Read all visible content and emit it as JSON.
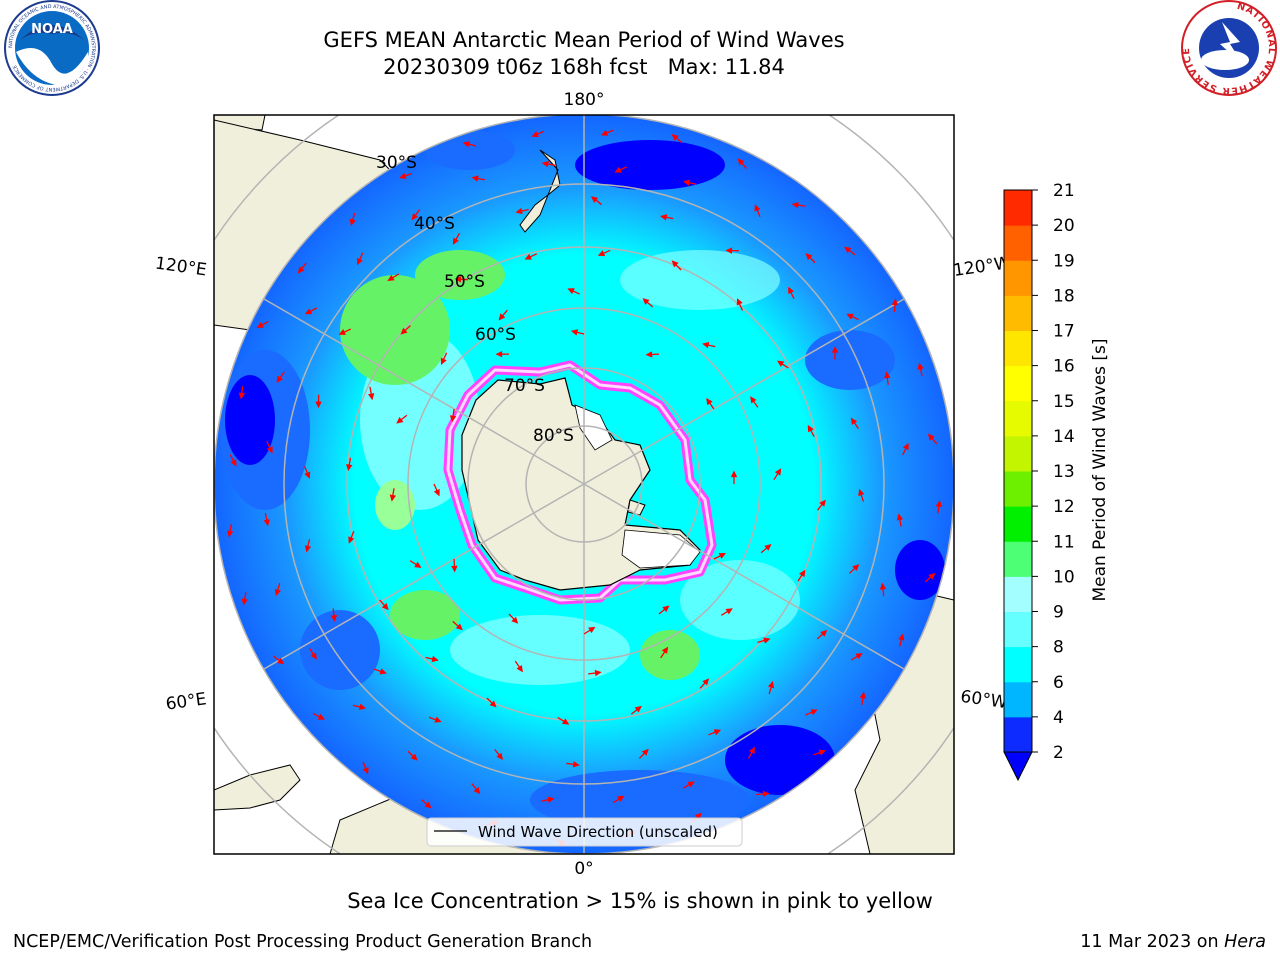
{
  "header": {
    "title_line1": "GEFS MEAN Antarctic Mean Period of Wind Waves",
    "title_line2": "20230309 t06z 168h fcst   Max: 11.84"
  },
  "logos": {
    "left": "NOAA",
    "right": "NATIONAL WEATHER SERVICE",
    "left_ring_text": "NATIONAL OCEANIC AND ATMOSPHERIC ADMINISTRATION · U.S. DEPARTMENT OF COMMERCE"
  },
  "map": {
    "meridian_labels": {
      "top": "180°",
      "bottom": "0°",
      "left_upper": "120°E",
      "left_lower": "60°E",
      "right_upper": "120°W",
      "right_lower": "60°W"
    },
    "latitude_labels": [
      "30°S",
      "40°S",
      "50°S",
      "60°S",
      "70°S",
      "80°S"
    ],
    "legend_label": "Wind Wave Direction (unscaled)"
  },
  "colorbar": {
    "label": "Mean Period of Wind Waves [s]",
    "ticks": [
      "2",
      "4",
      "6",
      "8",
      "9",
      "10",
      "11",
      "12",
      "13",
      "14",
      "15",
      "16",
      "17",
      "18",
      "19",
      "20",
      "21"
    ],
    "colors": [
      "#0d2bff",
      "#00b7ff",
      "#00ffff",
      "#66ffff",
      "#a3ffff",
      "#4cff74",
      "#00f000",
      "#6cf000",
      "#c4f500",
      "#e6fa00",
      "#ffff00",
      "#ffe600",
      "#ffbb00",
      "#ff9600",
      "#ff6000",
      "#ff2a00"
    ],
    "under_color": "#0000ff",
    "colors_ocean": {
      "deep": "#0000ff",
      "blue": "#1a6bff",
      "cyan": "#00ffff",
      "light": "#80ffff",
      "green": "#66f266",
      "land": "#efefdb",
      "ice_pink": "#ff44ff"
    }
  },
  "subtitle": "Sea Ice Concentration > 15% is shown in pink to yellow",
  "footer": {
    "left": "NCEP/EMC/Verification Post Processing Product Generation Branch",
    "right_date": "11 Mar 2023 on",
    "right_host": "Hera"
  }
}
